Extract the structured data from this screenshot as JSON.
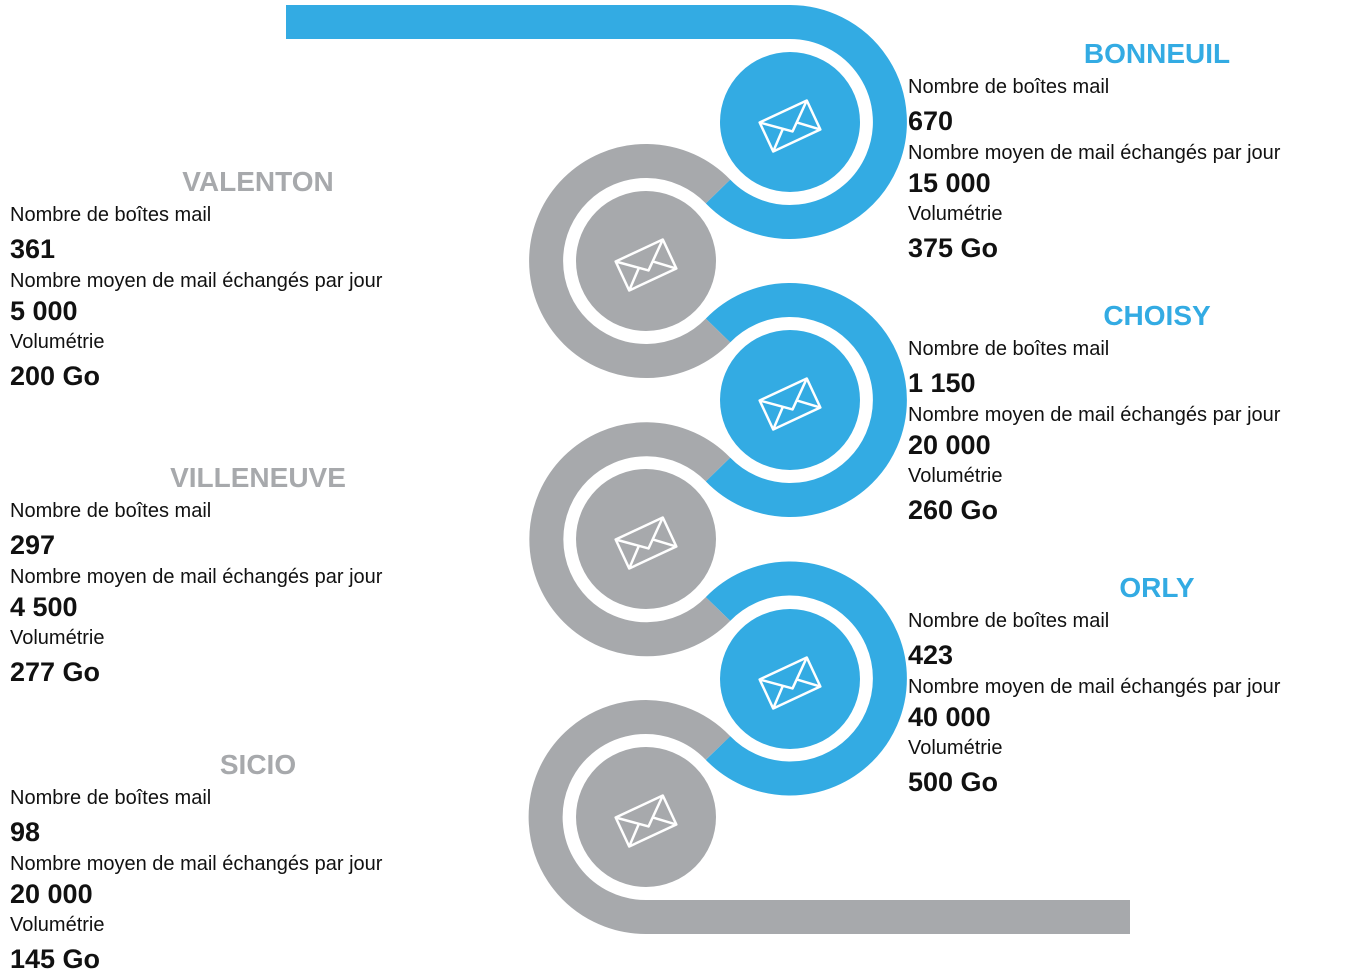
{
  "sites": [
    {
      "name": "BONNEUIL",
      "stats": [
        {
          "label": "Nombre de boîtes mail",
          "value": "670"
        },
        {
          "label": "Nombre moyen de mail échangés par jour",
          "value": "15 000"
        },
        {
          "label": "Volumétrie",
          "value": "375 Go"
        }
      ]
    },
    {
      "name": "VALENTON",
      "stats": [
        {
          "label": "Nombre de boîtes mail",
          "value": "361"
        },
        {
          "label": "Nombre moyen de mail échangés par jour",
          "value": "5 000"
        },
        {
          "label": "Volumétrie",
          "value": "200 Go"
        }
      ]
    },
    {
      "name": "CHOISY",
      "stats": [
        {
          "label": "Nombre de boîtes mail",
          "value": "1 150"
        },
        {
          "label": "Nombre moyen de mail échangés par jour",
          "value": "20 000"
        },
        {
          "label": "Volumétrie",
          "value": "260 Go"
        }
      ]
    },
    {
      "name": "VILLENEUVE",
      "stats": [
        {
          "label": "Nombre de boîtes mail",
          "value": "297"
        },
        {
          "label": "Nombre moyen de mail échangés par jour",
          "value": "4 500"
        },
        {
          "label": "Volumétrie",
          "value": "277 Go"
        }
      ]
    },
    {
      "name": "ORLY",
      "stats": [
        {
          "label": "Nombre de boîtes mail",
          "value": "423"
        },
        {
          "label": "Nombre moyen de mail échangés par jour",
          "value": "40 000"
        },
        {
          "label": "Volumétrie",
          "value": "500 Go"
        }
      ]
    },
    {
      "name": "SICIO",
      "stats": [
        {
          "label": "Nombre de boîtes mail",
          "value": "98"
        },
        {
          "label": "Nombre moyen de mail échangés par jour",
          "value": "20 000"
        },
        {
          "label": "Volumétrie",
          "value": "145 Go"
        }
      ]
    }
  ]
}
